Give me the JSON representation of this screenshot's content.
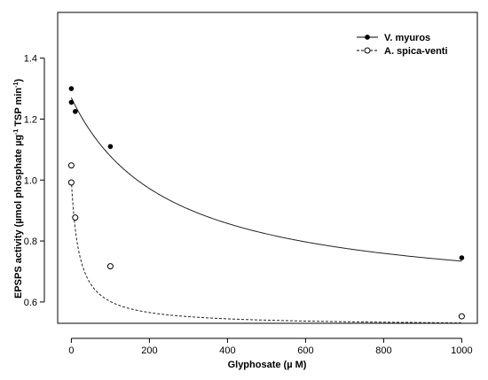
{
  "chart_data": {
    "type": "scatter",
    "xlabel": "Glyphosate (µ M)",
    "ylabel_main": "EPSPS activity (µmol phosphate µg",
    "ylabel_mid": " TSP min",
    "ylabel_close": ")",
    "ylabel_sup": "-1",
    "xlim": [
      -35,
      1040
    ],
    "ylim": [
      0.53,
      1.55
    ],
    "x_ticks": [
      0,
      200,
      400,
      600,
      800,
      1000
    ],
    "y_ticks": [
      0.6,
      0.8,
      1.0,
      1.2,
      1.4
    ],
    "x_tick_labels": [
      "0",
      "200",
      "400",
      "600",
      "800",
      "1000"
    ],
    "y_tick_labels": [
      "0.6",
      "0.8",
      "1.0",
      "1.2",
      "1.4"
    ],
    "legend_position": "top-right",
    "series": [
      {
        "name": "V. myuros",
        "marker": "filled-circle",
        "line": "solid",
        "points": [
          {
            "x": 0,
            "y": 1.3
          },
          {
            "x": 0,
            "y": 1.255
          },
          {
            "x": 10,
            "y": 1.225
          },
          {
            "x": 100,
            "y": 1.11
          },
          {
            "x": 1000,
            "y": 0.745
          }
        ],
        "fit": {
          "bottom": 0.6,
          "top": 1.27,
          "ec50": 250
        }
      },
      {
        "name": "A. spica-venti",
        "marker": "open-circle",
        "line": "dashed",
        "points": [
          {
            "x": 0,
            "y": 1.048
          },
          {
            "x": 0,
            "y": 0.992
          },
          {
            "x": 10,
            "y": 0.877
          },
          {
            "x": 100,
            "y": 0.717
          },
          {
            "x": 1000,
            "y": 0.553
          }
        ],
        "fit": {
          "bottom": 0.522,
          "top": 0.999,
          "ec50": 20
        }
      }
    ]
  }
}
